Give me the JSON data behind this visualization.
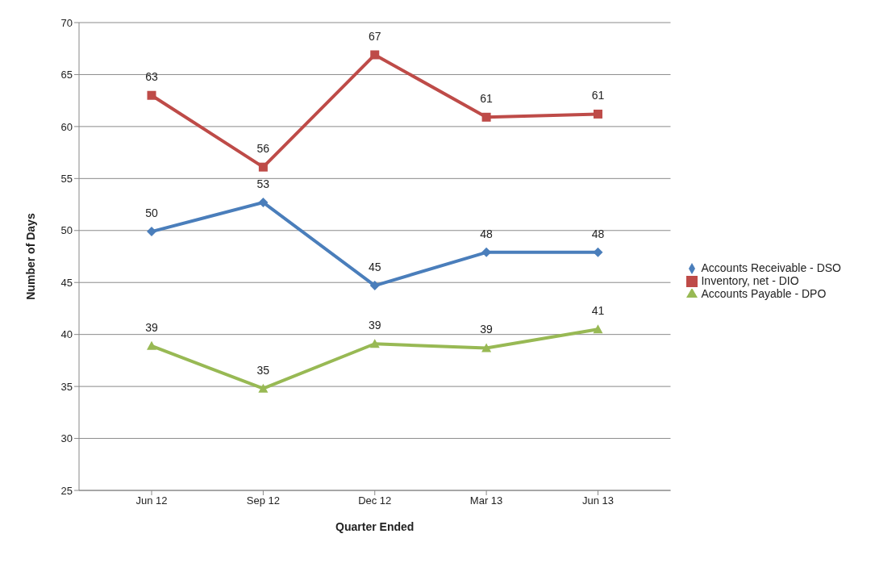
{
  "chart_data": {
    "type": "line",
    "xlabel": "Quarter Ended",
    "ylabel": "Number of Days",
    "categories": [
      "Jun 12",
      "Sep 12",
      "Dec 12",
      "Mar 13",
      "Jun 13"
    ],
    "series": [
      {
        "name": "Accounts Receivable - DSO",
        "color": "#4a7ebb",
        "marker": "diamond",
        "values": [
          49.9,
          52.7,
          44.7,
          47.9,
          47.9
        ],
        "value_labels": [
          "50",
          "53",
          "45",
          "48",
          "48"
        ]
      },
      {
        "name": "Inventory, net - DIO",
        "color": "#be4b48",
        "marker": "square",
        "values": [
          63.0,
          56.1,
          66.9,
          60.9,
          61.2
        ],
        "value_labels": [
          "63",
          "56",
          "67",
          "61",
          "61"
        ]
      },
      {
        "name": "Accounts Payable - DPO",
        "color": "#98b954",
        "marker": "triangle",
        "values": [
          38.9,
          34.8,
          39.1,
          38.7,
          40.5
        ],
        "value_labels": [
          "39",
          "35",
          "39",
          "39",
          "41"
        ]
      }
    ],
    "ylim": [
      25,
      70
    ],
    "yticks": [
      25,
      30,
      35,
      40,
      45,
      50,
      55,
      60,
      65,
      70
    ],
    "grid": "y",
    "legend": "right",
    "line_style": "solid"
  }
}
